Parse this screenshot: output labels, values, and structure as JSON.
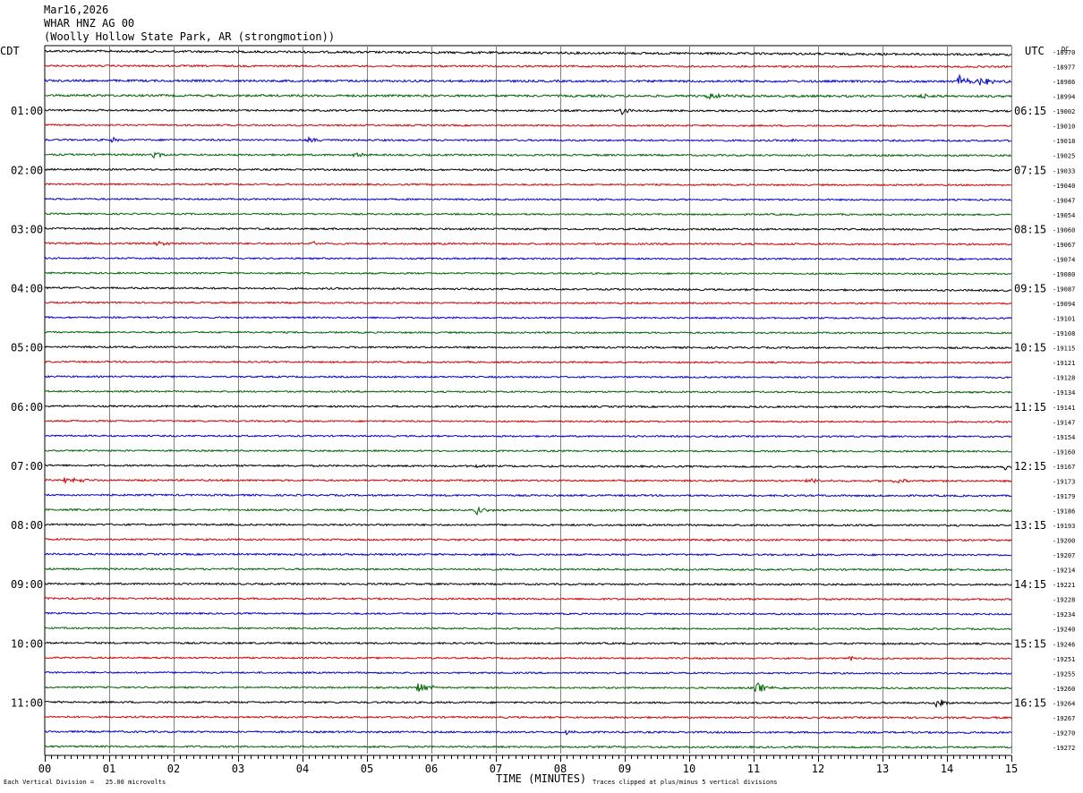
{
  "header": {
    "date": "Mar16,2026",
    "station": "WHAR HNZ AG 00",
    "location": "(Woolly Hollow State Park, AR (strongmotion))"
  },
  "left_zone_label": "CDT",
  "right_zone_label": "UTC",
  "dc_label": "DC",
  "footer": {
    "scale_note": "Each Vertical Division =   25.00 microvolts",
    "x_axis_title": "TIME (MINUTES)",
    "clip_note": "Traces clipped at plus/minus 5 vertical divisions"
  },
  "colors": {
    "trace_cycle": [
      "#000000",
      "#d40000",
      "#0000cc",
      "#006400"
    ],
    "grid": "#808080"
  },
  "chart_data": {
    "type": "line",
    "subtype": "helicorder",
    "x_ticks": [
      "00",
      "01",
      "02",
      "03",
      "04",
      "05",
      "06",
      "07",
      "08",
      "09",
      "10",
      "11",
      "12",
      "13",
      "14",
      "15"
    ],
    "xlabel": "TIME (MINUTES)",
    "xlim": [
      0,
      15
    ],
    "row_minutes": 15,
    "left_labels": [
      "",
      "",
      "",
      "",
      "01:00",
      "",
      "",
      "",
      "02:00",
      "",
      "",
      "",
      "03:00",
      "",
      "",
      "",
      "04:00",
      "",
      "",
      "",
      "05:00",
      "",
      "",
      "",
      "06:00",
      "",
      "",
      "",
      "07:00",
      "",
      "",
      "",
      "08:00",
      "",
      "",
      "",
      "09:00",
      "",
      "",
      "",
      "10:00",
      "",
      "",
      "",
      "11:00",
      "",
      "",
      ""
    ],
    "right_labels": [
      "",
      "",
      "",
      "",
      "06:15",
      "",
      "",
      "",
      "07:15",
      "",
      "",
      "",
      "08:15",
      "",
      "",
      "",
      "09:15",
      "",
      "",
      "",
      "10:15",
      "",
      "",
      "",
      "11:15",
      "",
      "",
      "",
      "12:15",
      "",
      "",
      "",
      "13:15",
      "",
      "",
      "",
      "14:15",
      "",
      "",
      "",
      "15:15",
      "",
      "",
      "",
      "16:15",
      "",
      "",
      ""
    ],
    "dc_offsets": [
      "-18970",
      "-18977",
      "-18986",
      "-18994",
      "-19002",
      "-19010",
      "-19018",
      "-19025",
      "-19033",
      "-19040",
      "-19047",
      "-19054",
      "-19060",
      "-19067",
      "-19074",
      "-19080",
      "-19087",
      "-19094",
      "-19101",
      "-19108",
      "-19115",
      "-19121",
      "-19128",
      "-19134",
      "-19141",
      "-19147",
      "-19154",
      "-19160",
      "-19167",
      "-19173",
      "-19179",
      "-19186",
      "-19193",
      "-19200",
      "-19207",
      "-19214",
      "-19221",
      "-19228",
      "-19234",
      "-19240",
      "-19246",
      "-19251",
      "-19255",
      "-19260",
      "-19264",
      "-19267",
      "-19270",
      "-19272"
    ],
    "row_noise": [
      1.2,
      1.0,
      1.2,
      1.2,
      1.0,
      0.9,
      1.0,
      1.0,
      1.0,
      0.9,
      0.9,
      0.9,
      1.0,
      1.0,
      0.9,
      0.9,
      1.0,
      0.9,
      0.9,
      0.9,
      1.0,
      0.9,
      0.9,
      0.9,
      1.0,
      0.9,
      0.9,
      0.9,
      1.0,
      1.0,
      1.0,
      1.0,
      1.0,
      1.0,
      1.0,
      1.0,
      1.0,
      1.0,
      0.9,
      0.9,
      1.0,
      0.9,
      0.9,
      0.9,
      1.0,
      1.0,
      1.0,
      1.0
    ],
    "row_drift": [
      -4,
      -1,
      -1,
      -1,
      -1,
      -1,
      -1,
      -1,
      -1,
      -1,
      -1,
      -1,
      -1,
      -1,
      -1,
      -1,
      -3,
      -1,
      -1,
      -1,
      -1,
      -1,
      -1,
      -1,
      -1,
      -1,
      -1,
      -1,
      -2,
      -1,
      -1,
      -1,
      -1,
      -1,
      -1,
      -1,
      -1,
      -1,
      -1,
      -1,
      -1,
      -1,
      -1,
      -1,
      -1,
      -1,
      -1,
      -1
    ],
    "events": [
      {
        "row": 2,
        "minute": 14.2,
        "amp": 11,
        "dur": 0.25
      },
      {
        "row": 2,
        "minute": 14.5,
        "amp": 4,
        "dur": 0.6
      },
      {
        "row": 3,
        "minute": 10.3,
        "amp": 3,
        "dur": 0.6
      },
      {
        "row": 3,
        "minute": 13.6,
        "amp": 3,
        "dur": 0.3
      },
      {
        "row": 4,
        "minute": 8.95,
        "amp": 6,
        "dur": 0.18
      },
      {
        "row": 6,
        "minute": 1.05,
        "amp": 3,
        "dur": 0.15
      },
      {
        "row": 6,
        "minute": 4.1,
        "amp": 4,
        "dur": 0.3
      },
      {
        "row": 6,
        "minute": 11.6,
        "amp": 2.5,
        "dur": 0.2
      },
      {
        "row": 7,
        "minute": 1.7,
        "amp": 3,
        "dur": 0.35
      },
      {
        "row": 7,
        "minute": 4.8,
        "amp": 3,
        "dur": 0.3
      },
      {
        "row": 13,
        "minute": 1.7,
        "amp": 3,
        "dur": 0.5
      },
      {
        "row": 13,
        "minute": 4.1,
        "amp": 3,
        "dur": 0.4
      },
      {
        "row": 28,
        "minute": 6.7,
        "amp": 2.5,
        "dur": 0.15
      },
      {
        "row": 28,
        "minute": 14.9,
        "amp": 3,
        "dur": 0.15
      },
      {
        "row": 29,
        "minute": 0.3,
        "amp": 4,
        "dur": 0.5
      },
      {
        "row": 29,
        "minute": 11.8,
        "amp": 2.5,
        "dur": 0.5
      },
      {
        "row": 29,
        "minute": 13.2,
        "amp": 2.5,
        "dur": 0.4
      },
      {
        "row": 31,
        "minute": 6.7,
        "amp": 6,
        "dur": 0.3
      },
      {
        "row": 41,
        "minute": 12.5,
        "amp": 3,
        "dur": 0.3
      },
      {
        "row": 43,
        "minute": 5.8,
        "amp": 6,
        "dur": 0.35
      },
      {
        "row": 43,
        "minute": 11.05,
        "amp": 6,
        "dur": 0.35
      },
      {
        "row": 44,
        "minute": 13.85,
        "amp": 10,
        "dur": 0.25
      },
      {
        "row": 46,
        "minute": 8.1,
        "amp": 3,
        "dur": 0.2
      }
    ]
  }
}
